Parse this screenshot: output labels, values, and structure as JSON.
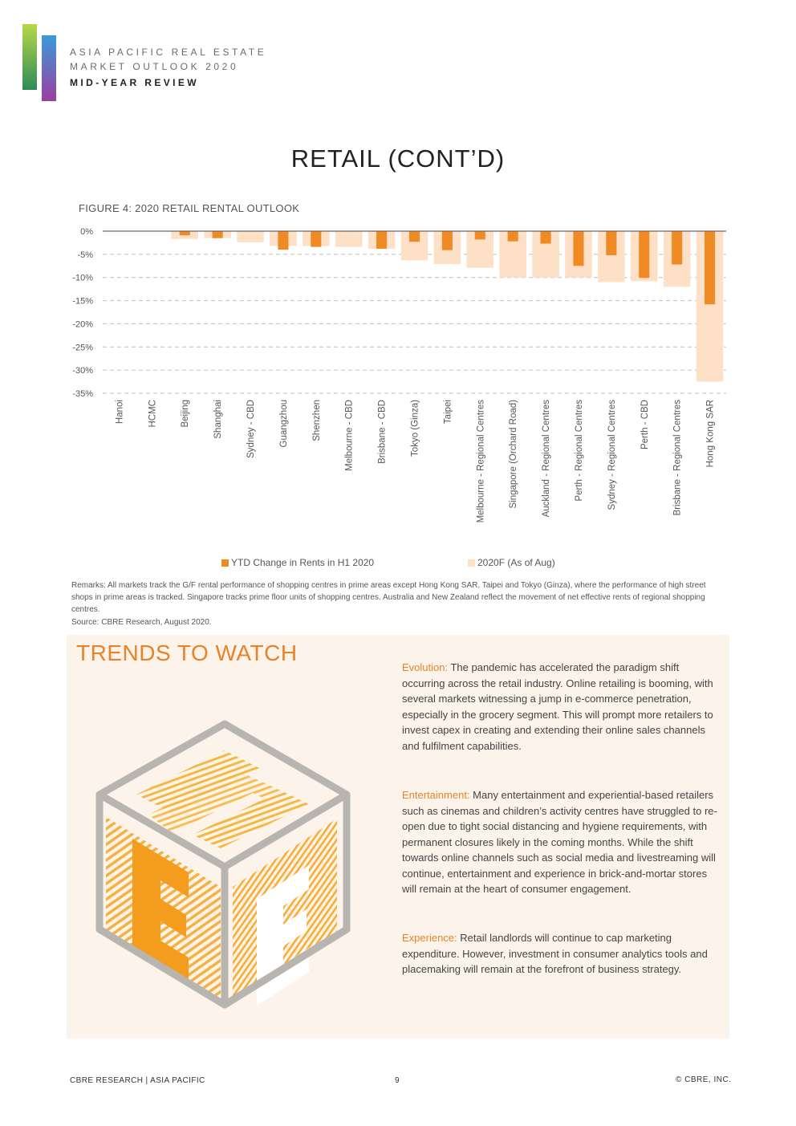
{
  "header": {
    "line1": "ASIA PACIFIC REAL ESTATE",
    "line2": "MARKET OUTLOOK 2020",
    "line3": "MID-YEAR REVIEW"
  },
  "page_title": "RETAIL (CONT’D)",
  "figure_title": "FIGURE 4: 2020 RETAIL RENTAL OUTLOOK",
  "chart_data": {
    "type": "bar",
    "title": "FIGURE 4: 2020 RETAIL RENTAL OUTLOOK",
    "categories": [
      "Hanoi",
      "HCMC",
      "Beijing",
      "Shanghai",
      "Sydney - CBD",
      "Guangzhou",
      "Shenzhen",
      "Melbourne - CBD",
      "Brisbane - CBD",
      "Tokyo (Ginza)",
      "Taipei",
      "Melbourne - Regional Centres",
      "Singapore (Orchard Road)",
      "Auckland - Regional Centres",
      "Perth - Regional Centres",
      "Sydney - Regional Centres",
      "Perth - CBD",
      "Brisbane - Regional Centres",
      "Hong Kong SAR"
    ],
    "series": [
      {
        "name": "YTD Change in Rents in H1 2020",
        "color": "#f08a24",
        "values": [
          0,
          0,
          -0.9,
          -1.5,
          0,
          -4.0,
          -3.4,
          0,
          -3.8,
          -2.3,
          -4.1,
          -1.8,
          -2.2,
          -2.7,
          -7.5,
          -5.2,
          -10.1,
          -7.2,
          -15.8
        ]
      },
      {
        "name": "2020F (As of Aug)",
        "color": "#fde0c6",
        "values": [
          0,
          0,
          -1.7,
          -1.5,
          -2.4,
          -3.2,
          -3.2,
          -3.4,
          -3.8,
          -6.3,
          -7.1,
          -7.9,
          -10.0,
          -10.0,
          -10.0,
          -11.0,
          -10.8,
          -12.0,
          -32.5
        ]
      }
    ],
    "yticks": [
      "0%",
      "-5%",
      "-10%",
      "-15%",
      "-20%",
      "-25%",
      "-30%",
      "-35%"
    ],
    "ylim": [
      -35,
      0
    ],
    "grid": true,
    "legend": "bottom"
  },
  "legend": {
    "item1": "YTD Change in Rents in H1 2020",
    "item2": "2020F (As of Aug)",
    "color1": "#f08a24",
    "color2": "#fde0c6"
  },
  "remarks": "Remarks: All markets track the G/F rental performance of shopping centres in prime areas except Hong Kong SAR, Taipei and Tokyo (Ginza), where the performance of high street shops in prime areas is tracked. Singapore tracks prime floor units of shopping centres. Australia and New Zealand reflect the movement of net effective rents of regional shopping centres.",
  "source": "Source: CBRE Research, August 2020.",
  "trends": {
    "title": "TRENDS TO WATCH",
    "items": [
      {
        "keyword": "Evolution:",
        "text": " The pandemic has accelerated the paradigm shift occurring across the retail industry. Online retailing is booming, with several markets witnessing a jump in e-commerce penetration, especially in the grocery segment. This will prompt more retailers to invest capex in creating and extending their online sales channels and fulfilment capabilities."
      },
      {
        "keyword": "Entertainment:",
        "text": " Many entertainment and experiential-based retailers such as cinemas and children’s activity centres have struggled to re-open due to tight social distancing and hygiene requirements, with permanent closures likely in the coming months. While the shift towards online channels such as social media and livestreaming will continue, entertainment and experience in brick-and-mortar stores will remain at the heart of consumer engagement."
      },
      {
        "keyword": "Experience:",
        "text": " Retail landlords will continue to cap marketing expenditure. However, investment in consumer analytics tools and placemaking will remain at the forefront of business strategy."
      }
    ]
  },
  "footer": {
    "left": "CBRE RESEARCH | ASIA PACIFIC",
    "page": "9",
    "right": "© CBRE, INC."
  }
}
